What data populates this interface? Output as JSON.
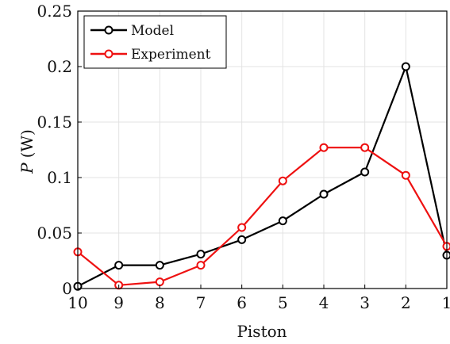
{
  "chart_data": {
    "type": "line",
    "xlabel": "Piston",
    "ylabel_symbol": "P",
    "ylabel_unit": "(W)",
    "categories": [
      "10",
      "9",
      "8",
      "7",
      "6",
      "5",
      "4",
      "3",
      "2",
      "1"
    ],
    "y_ticks": [
      "0",
      "0.05",
      "0.1",
      "0.15",
      "0.2",
      "0.25"
    ],
    "ylim": [
      0,
      0.25
    ],
    "grid": true,
    "legend_position": "top-left",
    "series": [
      {
        "name": "Model",
        "color": "#000000",
        "marker": "circle",
        "values": [
          0.002,
          0.021,
          0.021,
          0.031,
          0.044,
          0.061,
          0.085,
          0.105,
          0.2,
          0.03
        ]
      },
      {
        "name": "Experiment",
        "color": "#ee1111",
        "marker": "circle",
        "values": [
          0.033,
          0.003,
          0.006,
          0.021,
          0.055,
          0.097,
          0.127,
          0.127,
          0.102,
          0.038
        ]
      }
    ]
  }
}
